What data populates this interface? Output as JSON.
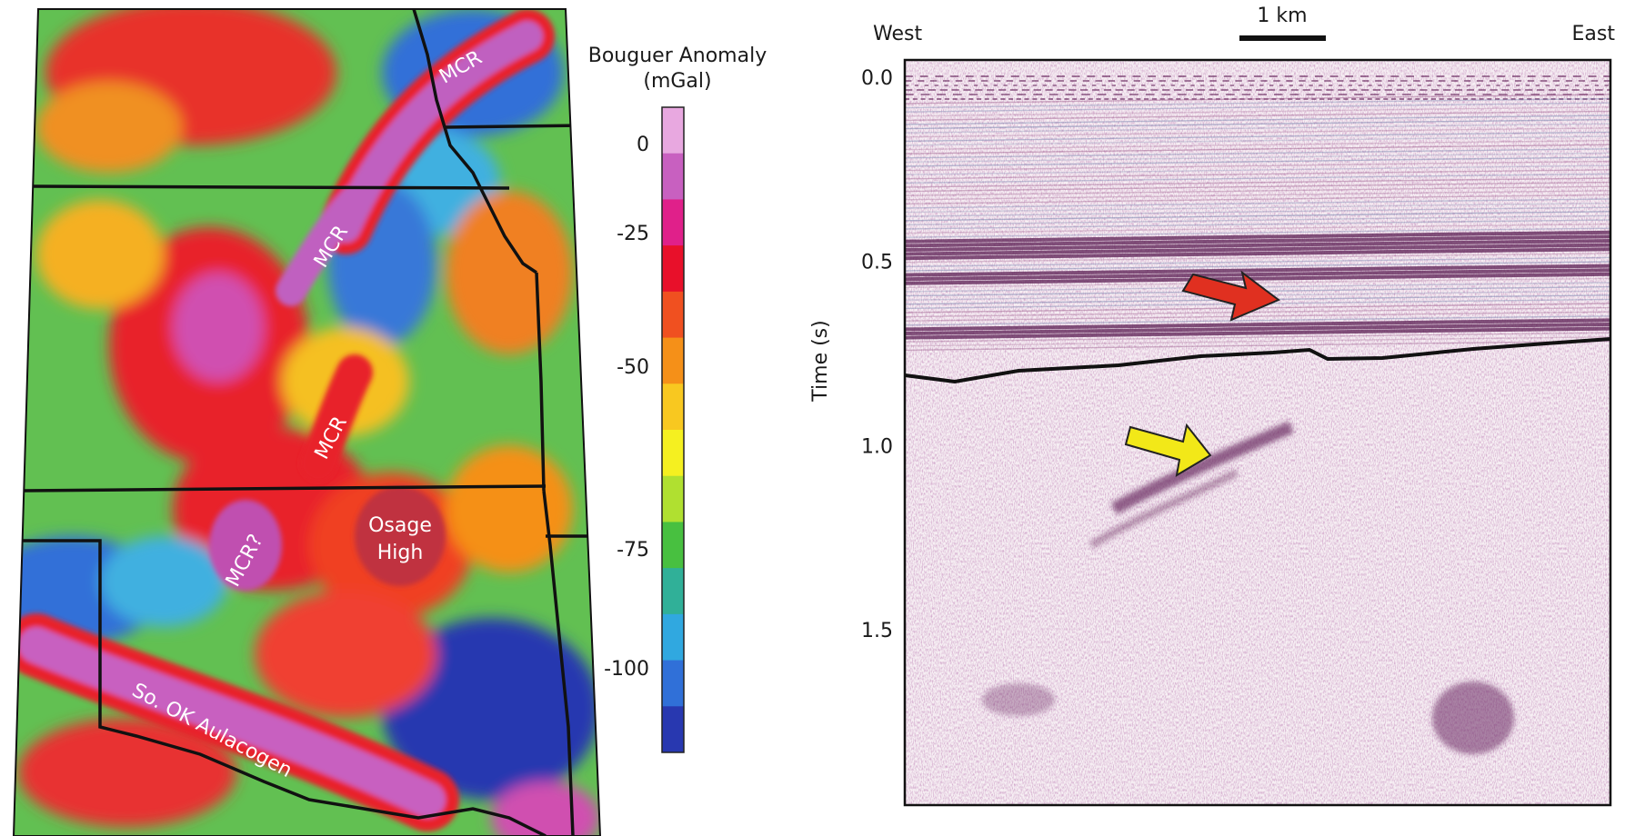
{
  "gravity_map": {
    "labels": {
      "mcr_north": "MCR",
      "mcr_central": "MCR",
      "mcr_south": "MCR",
      "mcr_query": "MCR?",
      "osage_line1": "Osage",
      "osage_line2": "High",
      "aulacogen": "So. OK Aulacogen"
    },
    "colorbar": {
      "title_line1": "Bouguer Anomaly",
      "title_line2": "(mGal)",
      "ticks": [
        "0",
        "-25",
        "-50",
        "-75",
        "-100"
      ],
      "colors": [
        "#e8a8e0",
        "#c860c0",
        "#e0208a",
        "#e8102a",
        "#f05020",
        "#f59018",
        "#f8c820",
        "#f5f020",
        "#b0e030",
        "#48c040",
        "#30b098",
        "#30a8e0",
        "#3070d8",
        "#2838b0"
      ]
    }
  },
  "seismic_section": {
    "west_label": "West",
    "east_label": "East",
    "scale_label": "1 km",
    "yaxis": {
      "label": "Time (s)",
      "ticks": [
        "0.0",
        "0.5",
        "1.0",
        "1.5"
      ],
      "tick_values": [
        0.0,
        0.5,
        1.0,
        1.5
      ],
      "range": [
        0.0,
        1.9
      ]
    },
    "arrow_colors": {
      "red": "#e03020",
      "yellow": "#f2e818"
    }
  }
}
